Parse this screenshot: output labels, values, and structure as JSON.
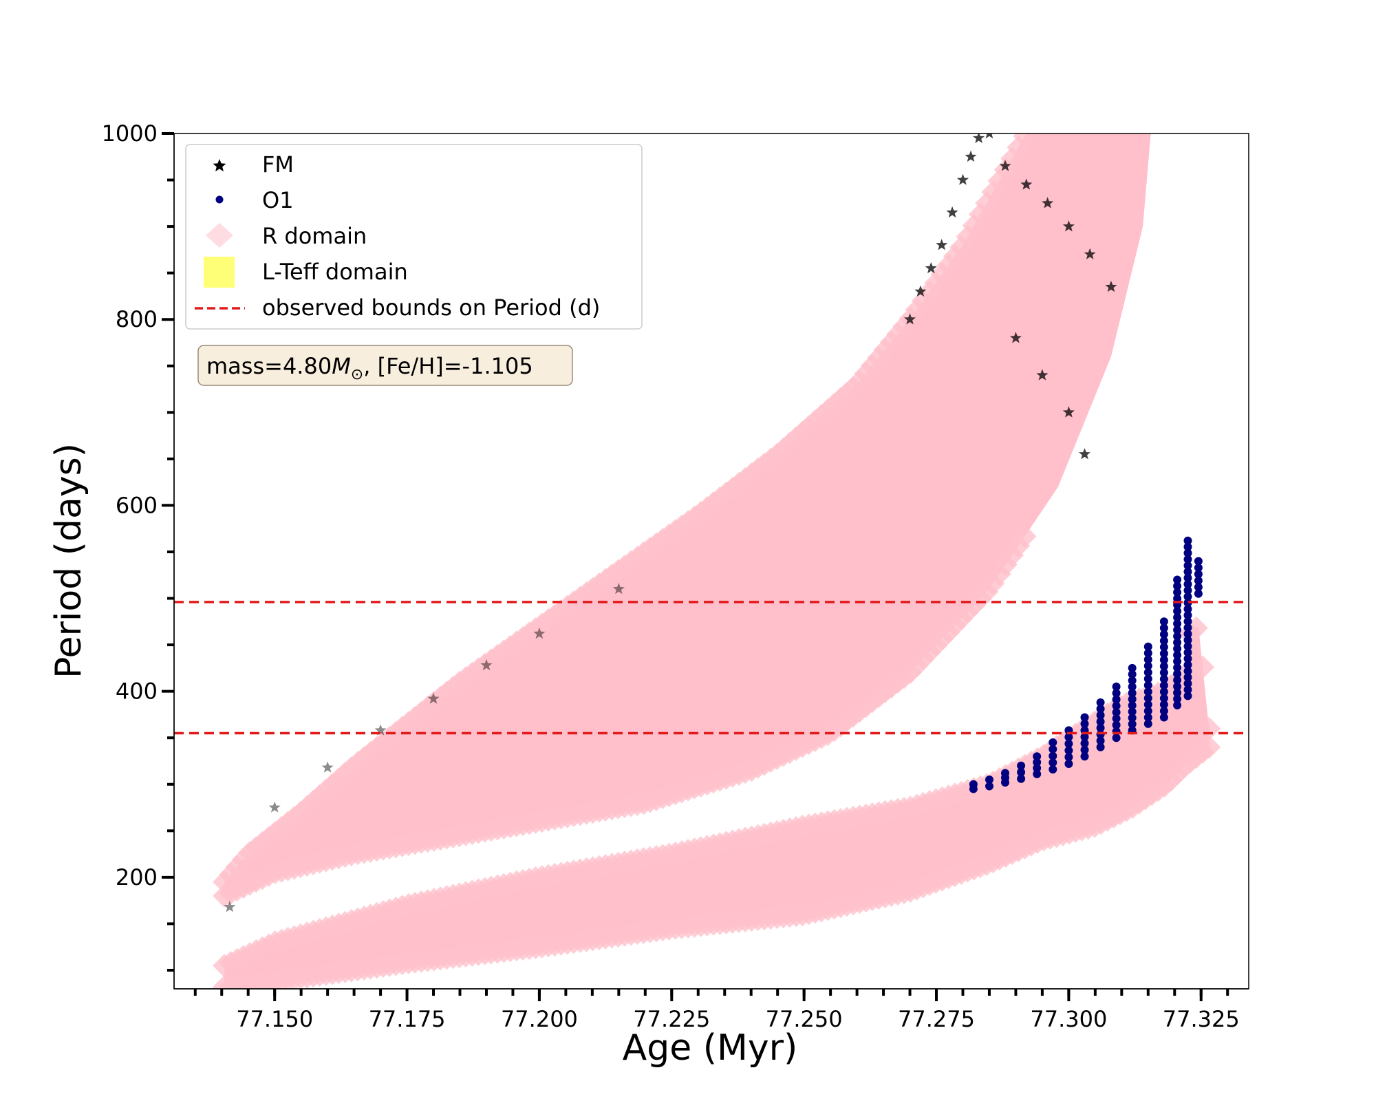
{
  "chart_data": {
    "type": "scatter",
    "xlabel": "Age (Myr)",
    "ylabel": "Period (days)",
    "xlim": [
      77.131,
      77.334
    ],
    "ylim": [
      80,
      1000
    ],
    "x_ticks": [
      77.15,
      77.175,
      77.2,
      77.225,
      77.25,
      77.275,
      77.3,
      77.325
    ],
    "x_tick_labels": [
      "77.150",
      "77.175",
      "77.200",
      "77.225",
      "77.250",
      "77.275",
      "77.300",
      "77.325"
    ],
    "y_ticks": [
      200,
      400,
      600,
      800,
      1000
    ],
    "y_tick_labels": [
      "200",
      "400",
      "600",
      "800",
      "1000"
    ],
    "hlines": [
      {
        "y": 496,
        "color": "#e31a1c",
        "style": "dashed",
        "label": "observed bounds on Period (d)"
      },
      {
        "y": 355,
        "color": "#e31a1c",
        "style": "dashed"
      }
    ],
    "annotation": {
      "text_prefix": "mass=4.80",
      "text_suffix": ", [Fe/H]=-1.105",
      "mass_symbol": "M",
      "sun_symbol": "⊙"
    },
    "legend": {
      "placement": "upper-left",
      "entries": [
        {
          "label": "FM",
          "marker": "star",
          "color": "#000000"
        },
        {
          "label": "O1",
          "marker": "circle",
          "color": "#000080"
        },
        {
          "label": "R domain",
          "marker": "diamond",
          "color": "#ffc0cb"
        },
        {
          "label": "L-Teff domain",
          "marker": "square",
          "color": "#ffff77"
        },
        {
          "label": "observed bounds on Period (d)",
          "marker": "dashed-line",
          "color": "#e31a1c"
        }
      ]
    },
    "series": [
      {
        "name": "R domain",
        "region": "FM upper band",
        "marker": "diamond",
        "color": "#ffc0cb",
        "upper": [
          [
            77.1405,
            195
          ],
          [
            77.145,
            225
          ],
          [
            77.155,
            270
          ],
          [
            77.165,
            320
          ],
          [
            77.175,
            365
          ],
          [
            77.185,
            410
          ],
          [
            77.2,
            470
          ],
          [
            77.215,
            530
          ],
          [
            77.23,
            590
          ],
          [
            77.245,
            655
          ],
          [
            77.26,
            730
          ],
          [
            77.27,
            800
          ],
          [
            77.28,
            880
          ],
          [
            77.288,
            960
          ],
          [
            77.292,
            1000
          ]
        ],
        "lower": [
          [
            77.1405,
            180
          ],
          [
            77.15,
            205
          ],
          [
            77.165,
            225
          ],
          [
            77.18,
            240
          ],
          [
            77.2,
            260
          ],
          [
            77.22,
            280
          ],
          [
            77.24,
            315
          ],
          [
            77.255,
            355
          ],
          [
            77.27,
            420
          ],
          [
            77.285,
            510
          ],
          [
            77.298,
            620
          ],
          [
            77.308,
            760
          ],
          [
            77.314,
            900
          ],
          [
            77.3155,
            1000
          ]
        ]
      },
      {
        "name": "R domain",
        "region": "O1 lower band",
        "marker": "diamond",
        "color": "#ffc0cb",
        "upper": [
          [
            77.1405,
            105
          ],
          [
            77.15,
            130
          ],
          [
            77.175,
            170
          ],
          [
            77.2,
            200
          ],
          [
            77.225,
            225
          ],
          [
            77.25,
            255
          ],
          [
            77.27,
            275
          ],
          [
            77.285,
            300
          ],
          [
            77.295,
            330
          ],
          [
            77.303,
            360
          ],
          [
            77.31,
            385
          ],
          [
            77.318,
            400
          ],
          [
            77.3225,
            420
          ],
          [
            77.3225,
            460
          ],
          [
            77.3245,
            470
          ],
          [
            77.3265,
            360
          ]
        ],
        "lower": [
          [
            77.1405,
            82
          ],
          [
            77.15,
            88
          ],
          [
            77.175,
            108
          ],
          [
            77.2,
            125
          ],
          [
            77.225,
            145
          ],
          [
            77.25,
            160
          ],
          [
            77.27,
            185
          ],
          [
            77.285,
            215
          ],
          [
            77.295,
            240
          ],
          [
            77.305,
            255
          ],
          [
            77.312,
            275
          ],
          [
            77.3185,
            300
          ],
          [
            77.322,
            320
          ],
          [
            77.3265,
            340
          ]
        ]
      },
      {
        "name": "O1",
        "marker": "circle",
        "color": "#000080",
        "columns": [
          {
            "x": 77.282,
            "ymin": 295,
            "ymax": 300
          },
          {
            "x": 77.285,
            "ymin": 298,
            "ymax": 305
          },
          {
            "x": 77.288,
            "ymin": 302,
            "ymax": 312
          },
          {
            "x": 77.291,
            "ymin": 306,
            "ymax": 320
          },
          {
            "x": 77.294,
            "ymin": 311,
            "ymax": 330
          },
          {
            "x": 77.297,
            "ymin": 316,
            "ymax": 345
          },
          {
            "x": 77.3,
            "ymin": 322,
            "ymax": 358
          },
          {
            "x": 77.303,
            "ymin": 330,
            "ymax": 372
          },
          {
            "x": 77.306,
            "ymin": 340,
            "ymax": 388
          },
          {
            "x": 77.309,
            "ymin": 350,
            "ymax": 405
          },
          {
            "x": 77.312,
            "ymin": 358,
            "ymax": 425
          },
          {
            "x": 77.315,
            "ymin": 365,
            "ymax": 448
          },
          {
            "x": 77.318,
            "ymin": 372,
            "ymax": 475
          },
          {
            "x": 77.3205,
            "ymin": 385,
            "ymax": 520
          },
          {
            "x": 77.3225,
            "ymin": 395,
            "ymax": 562
          },
          {
            "x": 77.3245,
            "ymin": 505,
            "ymax": 540
          }
        ]
      },
      {
        "name": "FM",
        "marker": "star",
        "color": "#000000",
        "points": [
          [
            77.1415,
            168
          ],
          [
            77.15,
            275
          ],
          [
            77.16,
            318
          ],
          [
            77.17,
            358
          ],
          [
            77.18,
            392
          ],
          [
            77.19,
            428
          ],
          [
            77.2,
            462
          ],
          [
            77.215,
            510
          ],
          [
            77.27,
            800
          ],
          [
            77.272,
            830
          ],
          [
            77.274,
            855
          ],
          [
            77.276,
            880
          ],
          [
            77.278,
            915
          ],
          [
            77.28,
            950
          ],
          [
            77.2815,
            975
          ],
          [
            77.283,
            995
          ],
          [
            77.285,
            1000
          ],
          [
            77.288,
            965
          ],
          [
            77.292,
            945
          ],
          [
            77.296,
            925
          ],
          [
            77.3,
            900
          ],
          [
            77.304,
            870
          ],
          [
            77.308,
            835
          ],
          [
            77.29,
            780
          ],
          [
            77.295,
            740
          ],
          [
            77.3,
            700
          ],
          [
            77.303,
            655
          ]
        ]
      }
    ]
  }
}
